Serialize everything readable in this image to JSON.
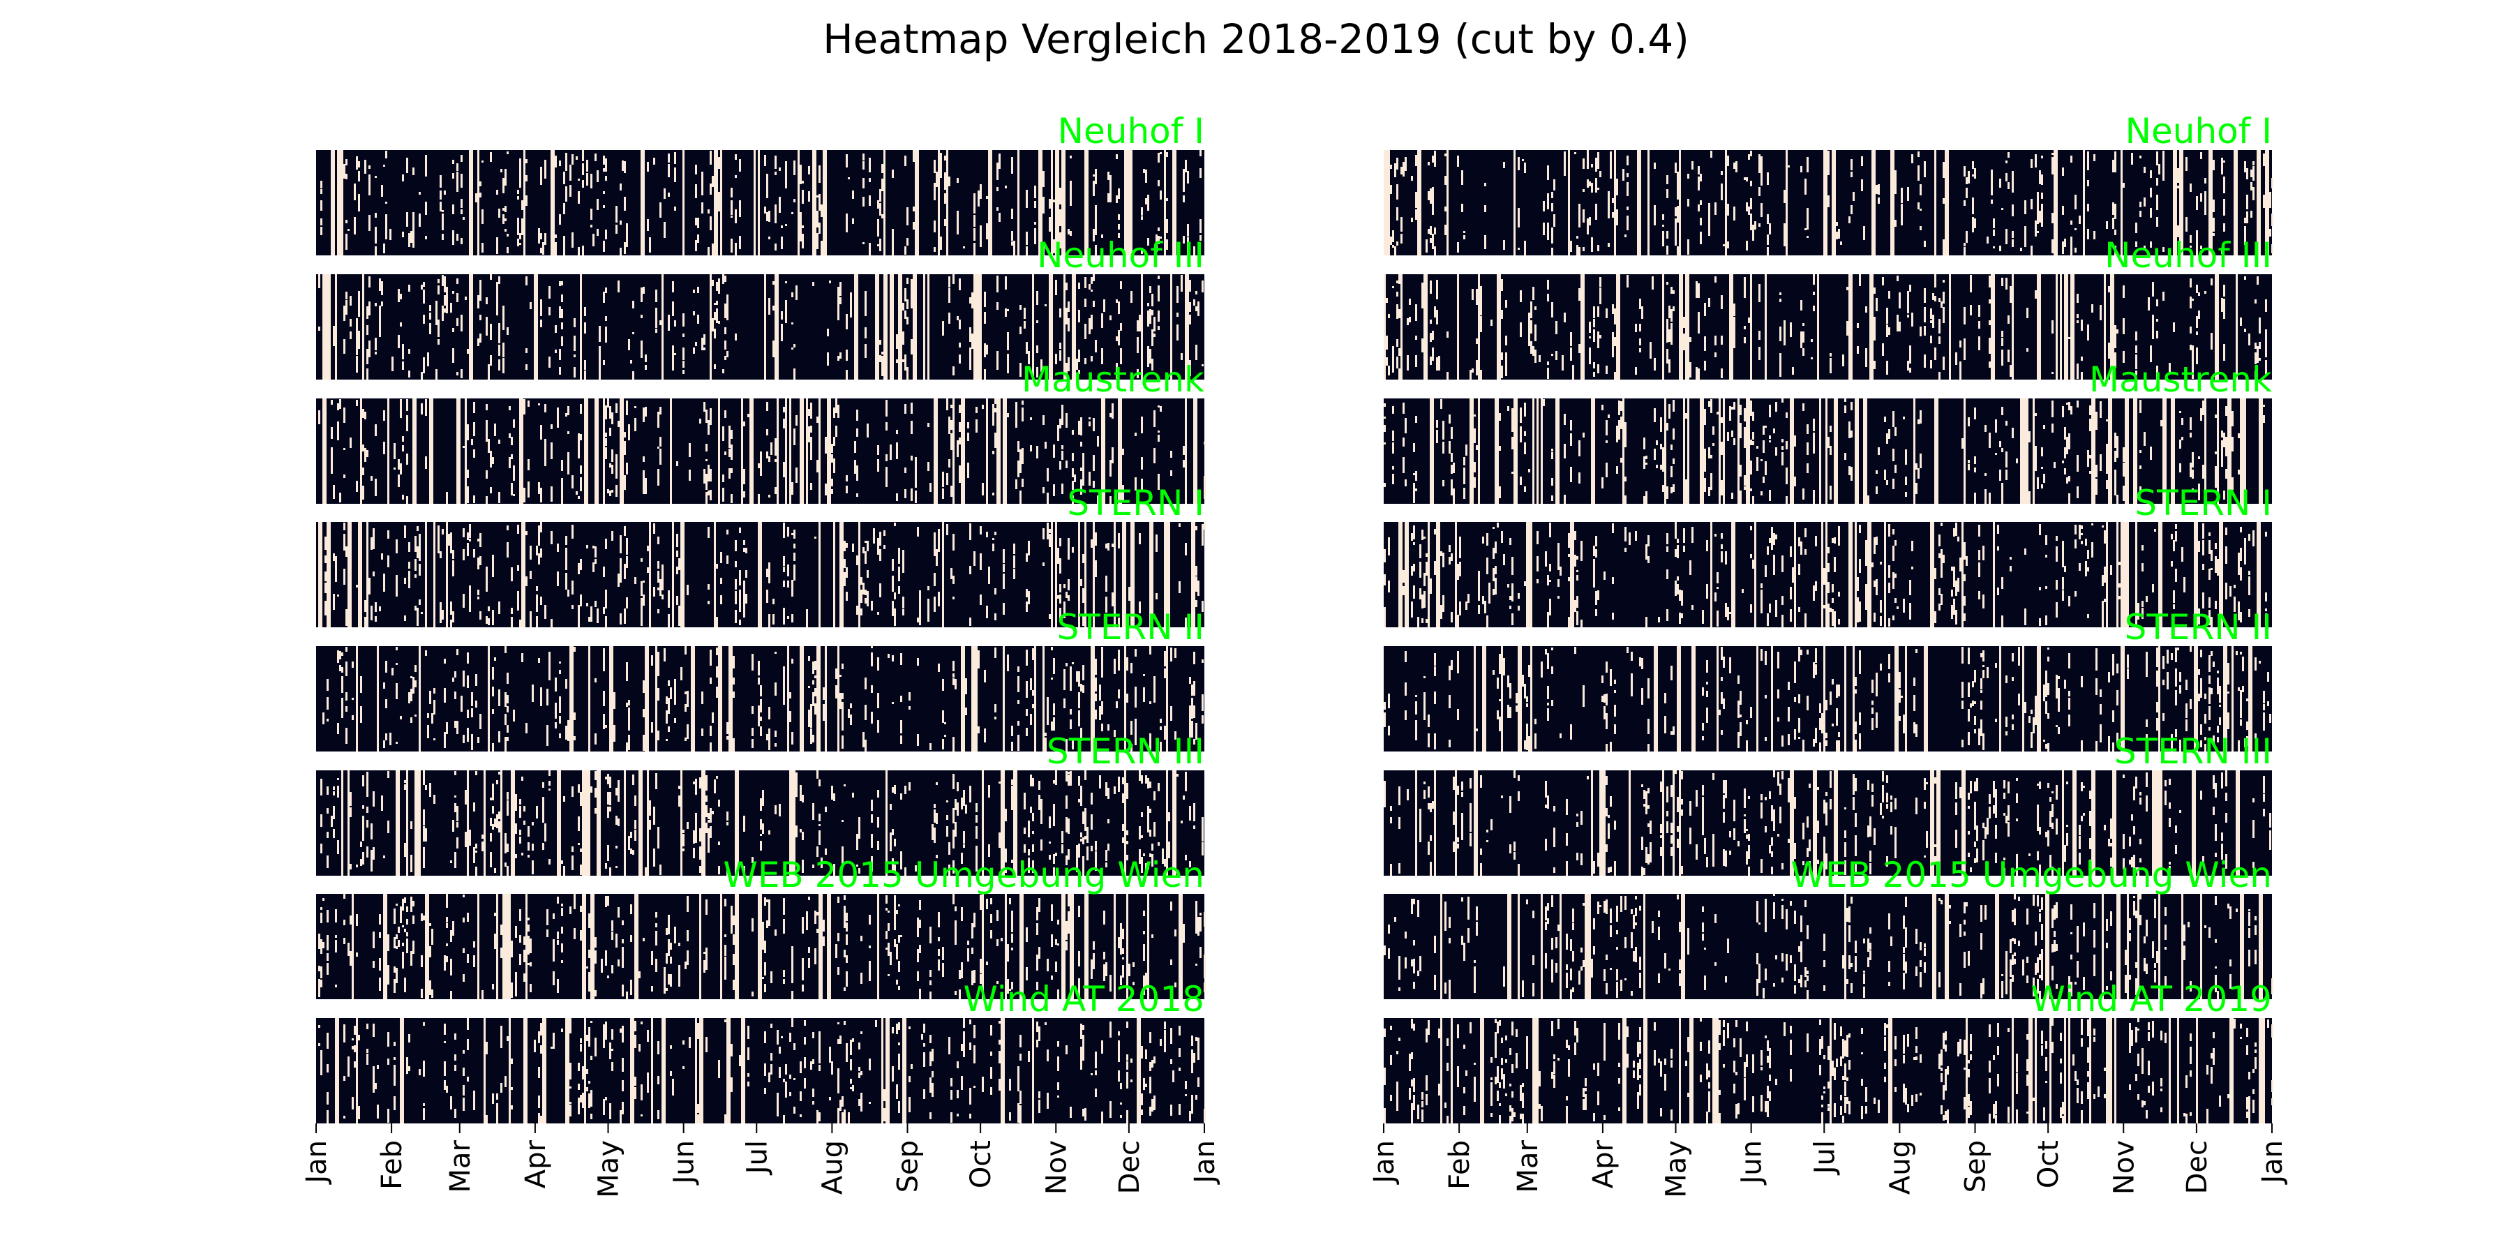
{
  "figure": {
    "title": "Heatmap Vergleich 2018-2019 (cut by 0.4)"
  },
  "chart_data": [
    {
      "type": "heatmap",
      "rows": [
        "Neuhof I",
        "Neuhof III",
        "Maustrenk",
        "STERN I",
        "STERN II",
        "STERN III",
        "WEB 2015 Umgebung Wien",
        "Wind AT 2018"
      ],
      "x_tick_labels": [
        "Jan",
        "Feb",
        "Mar",
        "Apr",
        "May",
        "Jun",
        "Jul",
        "Aug",
        "Sep",
        "Oct",
        "Nov",
        "Dec",
        "Jan"
      ],
      "colors": {
        "above_cut": "#03051a",
        "below_cut": "#faebdd",
        "row_label": "#00ff00"
      }
    },
    {
      "type": "heatmap",
      "rows": [
        "Neuhof I",
        "Neuhof III",
        "Maustrenk",
        "STERN I",
        "STERN II",
        "STERN III",
        "WEB 2015 Umgebung Wien",
        "Wind AT 2019"
      ],
      "x_tick_labels": [
        "Jan",
        "Feb",
        "Mar",
        "Apr",
        "May",
        "Jun",
        "Jul",
        "Aug",
        "Sep",
        "Oct",
        "Nov",
        "Dec",
        "Jan"
      ],
      "colors": {
        "above_cut": "#03051a",
        "below_cut": "#faebdd",
        "row_label": "#00ff00"
      }
    }
  ]
}
